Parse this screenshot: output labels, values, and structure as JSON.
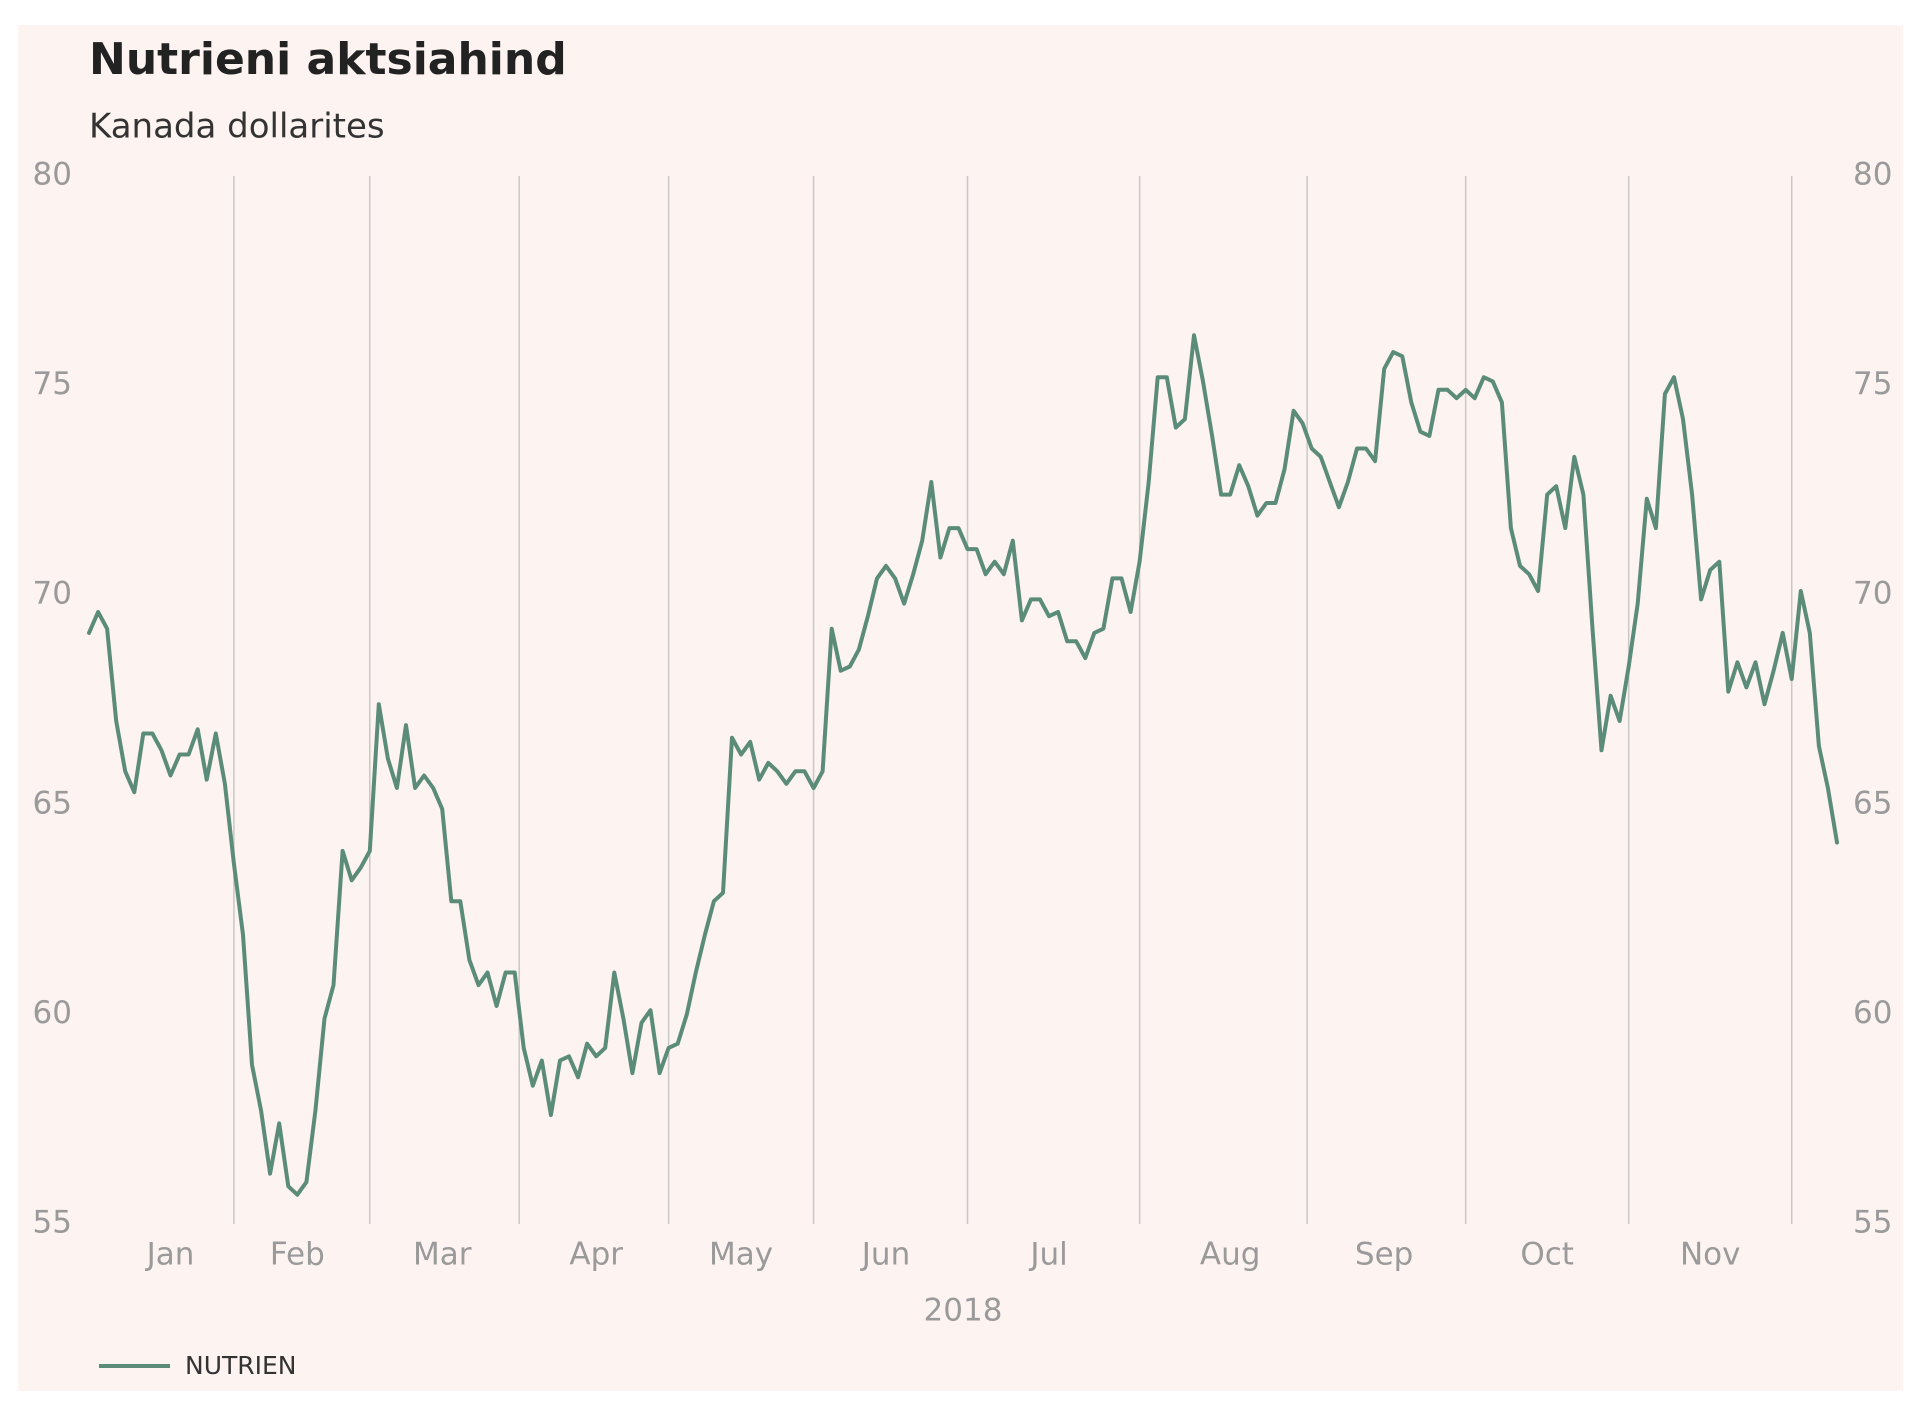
{
  "chart_data": {
    "type": "line",
    "title": "Nutrieni aktsiahind",
    "subtitle": "Kanada dollarites",
    "xlabel": "2018",
    "categories": [
      null,
      null,
      null,
      null,
      null,
      null,
      null,
      null,
      null,
      "Jan",
      null,
      null,
      null,
      null,
      null,
      null,
      null,
      null,
      null,
      null,
      null,
      null,
      null,
      "Feb",
      null,
      null,
      null,
      null,
      null,
      null,
      null,
      null,
      null,
      null,
      null,
      null,
      null,
      null,
      null,
      "Mar",
      null,
      null,
      null,
      null,
      null,
      null,
      null,
      null,
      null,
      null,
      null,
      null,
      null,
      null,
      null,
      null,
      "Apr",
      null,
      null,
      null,
      null,
      null,
      null,
      null,
      null,
      null,
      null,
      null,
      null,
      null,
      null,
      null,
      "May",
      null,
      null,
      null,
      null,
      null,
      null,
      null,
      null,
      null,
      null,
      null,
      null,
      null,
      null,
      null,
      "Jun",
      null,
      null,
      null,
      null,
      null,
      null,
      null,
      null,
      null,
      null,
      null,
      null,
      null,
      null,
      null,
      null,
      null,
      "Jul",
      null,
      null,
      null,
      null,
      null,
      null,
      null,
      null,
      null,
      null,
      null,
      null,
      null,
      null,
      null,
      null,
      null,
      null,
      null,
      "Aug",
      null,
      null,
      null,
      null,
      null,
      null,
      null,
      null,
      null,
      null,
      null,
      null,
      null,
      null,
      null,
      null,
      "Sep",
      null,
      null,
      null,
      null,
      null,
      null,
      null,
      null,
      null,
      null,
      null,
      null,
      null,
      null,
      null,
      null,
      null,
      "Oct",
      null,
      null,
      null,
      null,
      null,
      null,
      null,
      null,
      null,
      null,
      null,
      null,
      null,
      null,
      null,
      null,
      null,
      "Nov",
      null,
      null,
      null,
      null,
      null,
      null,
      null,
      null,
      null,
      null,
      null,
      null,
      null,
      null
    ],
    "series": [
      {
        "name": "NUTRIEN",
        "color": "#5b8c7a",
        "values": [
          69.1,
          69.6,
          69.2,
          67.0,
          65.8,
          65.3,
          66.7,
          66.7,
          66.3,
          65.7,
          66.2,
          66.2,
          66.8,
          65.6,
          66.7,
          65.5,
          63.6,
          61.9,
          58.8,
          57.7,
          56.2,
          57.4,
          55.9,
          55.7,
          56.0,
          57.7,
          59.9,
          60.7,
          63.9,
          63.2,
          63.5,
          63.9,
          67.4,
          66.1,
          65.4,
          66.9,
          65.4,
          65.7,
          65.4,
          64.9,
          62.7,
          62.7,
          61.3,
          60.7,
          61.0,
          60.2,
          61.0,
          61.0,
          59.2,
          58.3,
          58.9,
          57.6,
          58.9,
          59.0,
          58.5,
          59.3,
          59.0,
          59.2,
          61.0,
          59.9,
          58.6,
          59.8,
          60.1,
          58.6,
          59.2,
          59.3,
          60.0,
          61.0,
          61.9,
          62.7,
          62.9,
          66.6,
          66.2,
          66.5,
          65.6,
          66.0,
          65.8,
          65.5,
          65.8,
          65.8,
          65.4,
          65.8,
          69.2,
          68.2,
          68.3,
          68.7,
          69.5,
          70.4,
          70.7,
          70.4,
          69.8,
          70.5,
          71.3,
          72.7,
          70.9,
          71.6,
          71.6,
          71.1,
          71.1,
          70.5,
          70.8,
          70.5,
          71.3,
          69.4,
          69.9,
          69.9,
          69.5,
          69.6,
          68.9,
          68.9,
          68.5,
          69.1,
          69.2,
          70.4,
          70.4,
          69.6,
          70.8,
          72.7,
          75.2,
          75.2,
          74.0,
          74.2,
          76.2,
          75.1,
          73.8,
          72.4,
          72.4,
          73.1,
          72.6,
          71.9,
          72.2,
          72.2,
          73.0,
          74.4,
          74.1,
          73.5,
          73.3,
          72.7,
          72.1,
          72.7,
          73.5,
          73.5,
          73.2,
          75.4,
          75.8,
          75.7,
          74.6,
          73.9,
          73.8,
          74.9,
          74.9,
          74.7,
          74.9,
          74.7,
          75.2,
          75.1,
          74.6,
          71.6,
          70.7,
          70.5,
          70.1,
          72.4,
          72.6,
          71.6,
          73.3,
          72.4,
          69.2,
          66.3,
          67.6,
          67.0,
          68.3,
          69.8,
          72.3,
          71.6,
          74.8,
          75.2,
          74.2,
          72.4,
          69.9,
          70.6,
          70.8,
          67.7,
          68.4,
          67.8,
          68.4,
          67.4,
          68.2,
          69.1,
          68.0,
          70.1,
          69.1,
          66.4,
          65.4,
          64.1
        ]
      }
    ],
    "ylim": [
      55,
      80
    ],
    "yticks": [
      55,
      60,
      65,
      70,
      75,
      80
    ],
    "y2lim": [
      55,
      80
    ],
    "y2ticks": [
      55,
      60,
      65,
      70,
      75,
      80
    ],
    "grid": "x",
    "legend": "bottom-left"
  }
}
